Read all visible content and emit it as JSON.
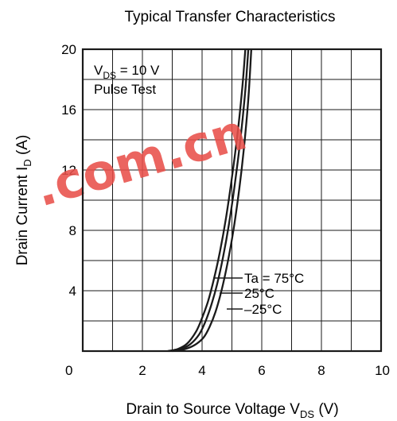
{
  "chart_data": {
    "type": "line",
    "title": "Typical Transfer Characteristics",
    "xlabel": {
      "main": "Drain to Source Voltage  V",
      "sub": "DS",
      "unit": "  (V)"
    },
    "ylabel": {
      "main": "Drain Current  I",
      "sub": "D",
      "unit": "  (A)"
    },
    "xlim": [
      0,
      10
    ],
    "ylim": [
      0,
      20
    ],
    "x_ticks": [
      "0",
      "2",
      "4",
      "6",
      "8",
      "10"
    ],
    "y_ticks": [
      "4",
      "8",
      "12",
      "16",
      "20"
    ],
    "grid": true,
    "conditions": {
      "vds_prefix": "V",
      "vds_sub": "DS",
      "vds_value": " = 10 V",
      "pulse": "Pulse Test"
    },
    "legend_labels": [
      "Ta = 75°C",
      "25°C",
      "–25°C"
    ],
    "series": [
      {
        "name": "Ta = 75°C",
        "x": [
          2.85,
          3.2,
          3.5,
          3.8,
          4.0,
          4.2,
          4.4,
          4.6,
          4.8,
          5.0,
          5.2,
          5.35,
          5.45
        ],
        "y": [
          0,
          0.15,
          0.5,
          1.3,
          2.2,
          3.3,
          4.8,
          6.6,
          8.8,
          11.5,
          14.6,
          17.5,
          20
        ]
      },
      {
        "name": "25°C",
        "x": [
          2.9,
          3.3,
          3.6,
          3.9,
          4.1,
          4.3,
          4.5,
          4.7,
          4.9,
          5.1,
          5.3,
          5.45,
          5.55
        ],
        "y": [
          0,
          0.15,
          0.45,
          1.1,
          1.9,
          3.0,
          4.4,
          6.2,
          8.4,
          11.1,
          14.3,
          17.3,
          20
        ]
      },
      {
        "name": "–25°C",
        "x": [
          3.0,
          3.4,
          3.75,
          4.05,
          4.25,
          4.45,
          4.65,
          4.85,
          5.05,
          5.25,
          5.4,
          5.55,
          5.65
        ],
        "y": [
          0,
          0.12,
          0.4,
          0.9,
          1.6,
          2.6,
          4.0,
          5.8,
          8.0,
          10.8,
          13.4,
          16.7,
          20
        ]
      }
    ],
    "watermark": {
      "text": ".com.cn",
      "color": "#e8504a"
    }
  }
}
